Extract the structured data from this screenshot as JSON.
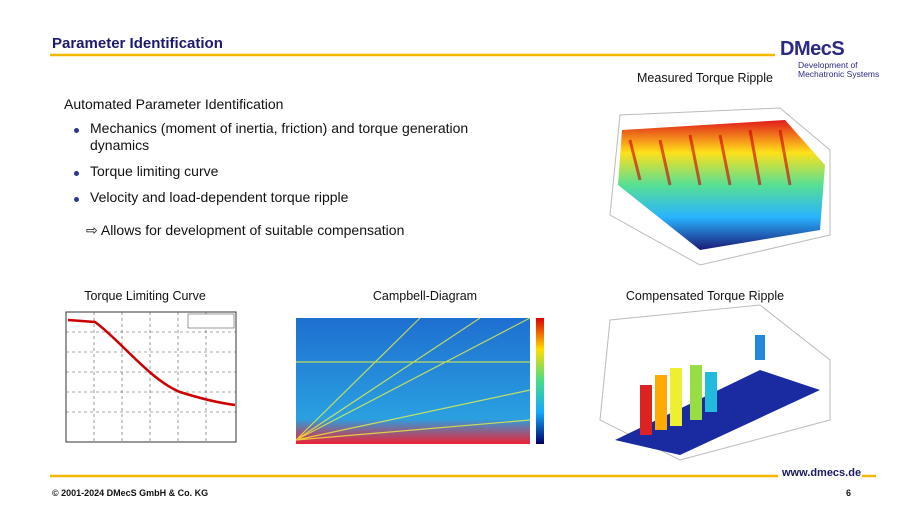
{
  "header": {
    "title": "Parameter Identification"
  },
  "logo": {
    "name": "DMecS",
    "tagline": [
      "Development of",
      "Mechatronic Systems"
    ]
  },
  "content": {
    "heading": "Automated Parameter Identification",
    "bullets": [
      "Mechanics (moment of inertia, friction) and torque generation dynamics",
      "Torque limiting curve",
      "Velocity and load-dependent torque ripple"
    ],
    "sub_point": "Allows for development of suitable compensation"
  },
  "figures": [
    "Measured Torque Ripple",
    "Torque Limiting Curve",
    "Campbell-Diagram",
    "Compensated Torque Ripple"
  ],
  "footer": {
    "url": "www.dmecs.de",
    "copyright": "© 2001-2024 DMecS GmbH & Co. KG",
    "page": "6"
  }
}
